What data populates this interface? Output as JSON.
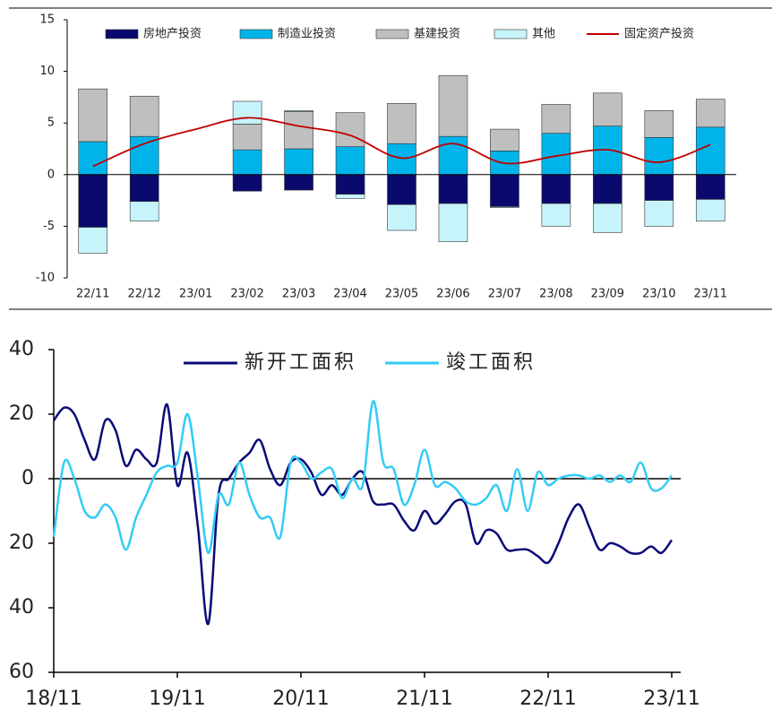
{
  "chart_data": [
    {
      "type": "bar",
      "stacked": true,
      "categories": [
        "22/11",
        "22/12",
        "23/01",
        "23/02",
        "23/03",
        "23/04",
        "23/05",
        "23/06",
        "23/07",
        "23/08",
        "23/09",
        "23/10",
        "23/11"
      ],
      "series": [
        {
          "name": "房地产投资",
          "color": "#0a0a6e",
          "values": [
            -5.1,
            -2.6,
            null,
            -1.6,
            -1.5,
            -1.9,
            -2.9,
            -2.8,
            -3.1,
            -2.8,
            -2.8,
            -2.5,
            -2.4
          ]
        },
        {
          "name": "制造业投资",
          "color": "#00b4ea",
          "values": [
            3.2,
            3.7,
            null,
            2.4,
            2.5,
            2.7,
            3.0,
            3.7,
            2.3,
            4.0,
            4.7,
            3.6,
            4.6
          ]
        },
        {
          "name": "基建投资",
          "color": "#bfbfbf",
          "values": [
            5.1,
            3.9,
            null,
            2.5,
            3.6,
            3.3,
            3.9,
            5.9,
            2.1,
            2.8,
            3.2,
            2.6,
            2.7
          ]
        },
        {
          "name": "其他",
          "color": "#c6f4fa",
          "values": [
            -2.5,
            -1.9,
            null,
            2.2,
            0.1,
            -0.4,
            -2.5,
            -3.7,
            -0.1,
            -2.2,
            -2.8,
            -2.5,
            -2.1
          ]
        },
        {
          "name": "固定资产投资",
          "color": "#c00000",
          "type": "line",
          "values": [
            0.8,
            3.0,
            4.4,
            5.5,
            4.7,
            3.8,
            1.6,
            3.0,
            1.1,
            1.8,
            2.4,
            1.2,
            2.9
          ]
        }
      ],
      "ylim": [
        -10,
        15
      ],
      "yticks": [
        -10,
        -5,
        0,
        5,
        10,
        15
      ]
    },
    {
      "type": "line",
      "categories": [
        "18/11",
        null,
        null,
        null,
        null,
        null,
        null,
        null,
        null,
        null,
        null,
        null,
        "19/11",
        null,
        null,
        null,
        null,
        null,
        null,
        null,
        null,
        null,
        null,
        null,
        "20/11",
        null,
        null,
        null,
        null,
        null,
        null,
        null,
        null,
        null,
        null,
        null,
        "21/11",
        null,
        null,
        null,
        null,
        null,
        null,
        null,
        null,
        null,
        null,
        null,
        "22/11",
        null,
        null,
        null,
        null,
        null,
        null,
        null,
        null,
        null,
        null,
        null,
        "23/11"
      ],
      "series": [
        {
          "name": "新开工面积",
          "color": "#0a0a78",
          "values": [
            18,
            22,
            20,
            12,
            6,
            18,
            15,
            4,
            9,
            6,
            5,
            23,
            -2,
            8,
            -15,
            -45,
            -5,
            0,
            5,
            8,
            12,
            3,
            -2,
            5,
            6,
            2,
            -5,
            -2,
            -5,
            0,
            2,
            -7,
            -8,
            -8,
            -13,
            -16,
            -10,
            -14,
            -11,
            -7,
            -8,
            -20,
            -16,
            -17,
            -22,
            -22,
            -22,
            -24,
            -26,
            -20,
            -12,
            -8,
            -15,
            -22,
            -20,
            -21,
            -23,
            -23,
            -21,
            -23,
            -19
          ]
        },
        {
          "name": "竣工面积",
          "color": "#33ccf5",
          "values": [
            -18,
            5,
            0,
            -10,
            -12,
            -8,
            -12,
            -22,
            -12,
            -5,
            2,
            4,
            5,
            20,
            0,
            -23,
            -5,
            -8,
            5,
            -5,
            -12,
            -12,
            -18,
            5,
            5,
            0,
            2,
            3,
            -6,
            0,
            -2,
            24,
            5,
            3,
            -8,
            -2,
            9,
            -2,
            -1,
            -3,
            -7,
            -8,
            -6,
            -2,
            -10,
            3,
            -10,
            2,
            -2,
            0,
            1,
            1,
            0,
            1,
            -1,
            1,
            -1,
            5,
            -3,
            -3,
            1
          ]
        }
      ],
      "ylim": [
        -60,
        40
      ],
      "yticks": [
        {
          "value": -60,
          "label": "60"
        },
        {
          "value": -40,
          "label": "40"
        },
        {
          "value": -20,
          "label": "20"
        },
        0,
        20,
        40
      ]
    }
  ]
}
